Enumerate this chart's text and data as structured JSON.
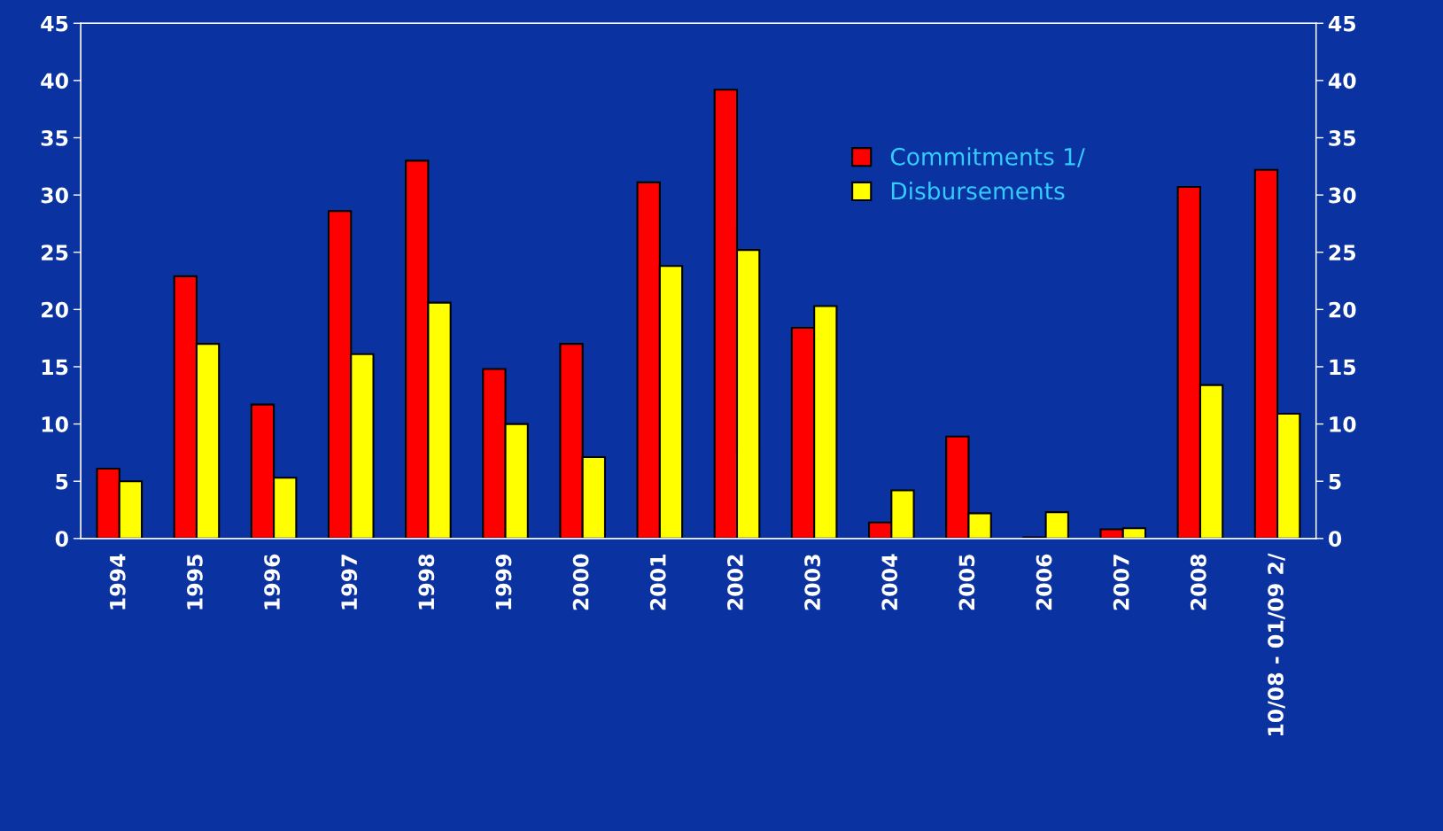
{
  "chart_data": {
    "type": "bar",
    "categories": [
      "1994",
      "1995",
      "1996",
      "1997",
      "1998",
      "1999",
      "2000",
      "2001",
      "2002",
      "2003",
      "2004",
      "2005",
      "2006",
      "2007",
      "2008",
      "10/08 - 01/09 2/"
    ],
    "series": [
      {
        "name": "Commitments 1/",
        "color": "#ff0000",
        "values": [
          6.1,
          22.9,
          11.7,
          28.6,
          33.0,
          14.8,
          17.0,
          31.1,
          39.2,
          18.4,
          1.4,
          8.9,
          0.1,
          0.8,
          30.7,
          32.2
        ]
      },
      {
        "name": "Disbursements",
        "color": "#ffff00",
        "values": [
          5.0,
          17.0,
          5.3,
          16.1,
          20.6,
          10.0,
          7.1,
          23.8,
          25.2,
          20.3,
          4.2,
          2.2,
          2.3,
          0.9,
          13.4,
          10.9
        ]
      }
    ],
    "ylim": [
      0,
      45
    ],
    "yticks": [
      0,
      5,
      10,
      15,
      20,
      25,
      30,
      35,
      40,
      45
    ],
    "y2lim": [
      0,
      45
    ],
    "y2ticks": [
      0,
      5,
      10,
      15,
      20,
      25,
      30,
      35,
      40,
      45
    ],
    "grid": false,
    "legend": "top right"
  }
}
